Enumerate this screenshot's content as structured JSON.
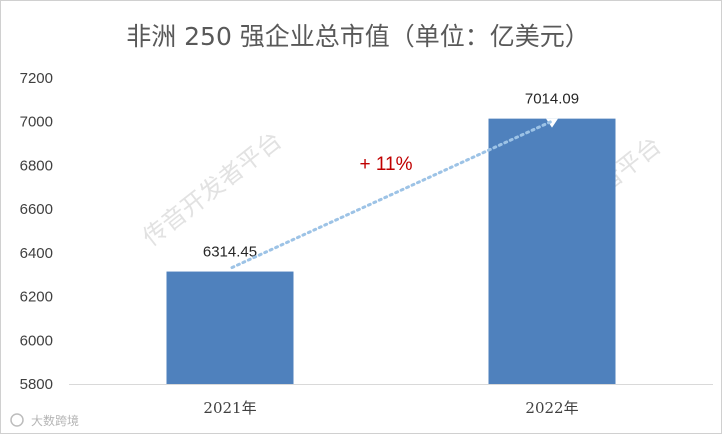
{
  "chart_data": {
    "type": "bar",
    "title": "非洲 250 强企业总市值（单位：亿美元）",
    "categories": [
      "2021年",
      "2022年"
    ],
    "values": [
      6314.45,
      7014.09
    ],
    "value_labels": [
      "6314.45",
      "7014.09"
    ],
    "yticks": [
      "5800",
      "6000",
      "6200",
      "6400",
      "6600",
      "6800",
      "7000",
      "7200"
    ],
    "ylim": [
      5800,
      7200
    ],
    "grid": false,
    "bar_color": "#4f81bd",
    "annotation": {
      "text": "+ 11%",
      "color": "#c00000"
    }
  },
  "watermarks": [
    "传音开发者平台",
    "者平台"
  ],
  "logo": {
    "text": "大数跨境"
  }
}
